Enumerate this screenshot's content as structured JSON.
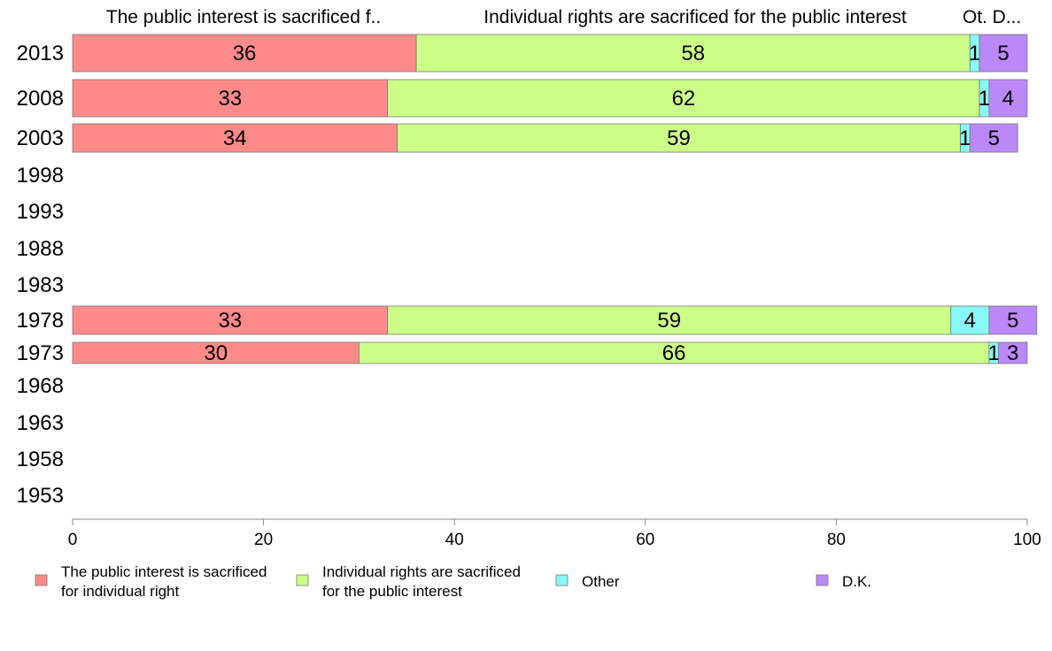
{
  "chart_data": {
    "type": "bar",
    "orientation": "horizontal",
    "stacked": true,
    "percent": true,
    "categories": [
      "2013",
      "2008",
      "2003",
      "1998",
      "1993",
      "1988",
      "1983",
      "1978",
      "1973",
      "1968",
      "1963",
      "1958",
      "1953"
    ],
    "series": [
      {
        "name": "The public interest is sacrificed for individual right",
        "values": [
          36,
          33,
          34,
          null,
          null,
          null,
          null,
          33,
          30,
          null,
          null,
          null,
          null
        ],
        "color": "#ff8a8a"
      },
      {
        "name": "Individual rights are sacrificed for the public interest",
        "values": [
          58,
          62,
          59,
          null,
          null,
          null,
          null,
          59,
          66,
          null,
          null,
          null,
          null
        ],
        "color": "#ccff88"
      },
      {
        "name": "Other",
        "values": [
          1,
          1,
          1,
          null,
          null,
          null,
          null,
          4,
          1,
          null,
          null,
          null,
          null
        ],
        "color": "#88f8f8"
      },
      {
        "name": "D.K.",
        "values": [
          5,
          4,
          5,
          null,
          null,
          null,
          null,
          5,
          3,
          null,
          null,
          null,
          null
        ],
        "color": "#bb88f8"
      }
    ],
    "column_headers": [
      "The public interest is sacrificed f..",
      "Individual rights are sacrificed for the public interest",
      "Ot.",
      "D..."
    ],
    "legend": {
      "position": "bottom",
      "entries": [
        {
          "line1": "The public interest is sacrificed",
          "line2": "for individual right"
        },
        {
          "line1": "Individual rights are sacrificed",
          "line2": "for the public interest"
        },
        {
          "line1": "Other",
          "line2": ""
        },
        {
          "line1": "D.K.",
          "line2": ""
        }
      ]
    },
    "xlim": [
      0,
      100
    ],
    "xticks": [
      0,
      20,
      40,
      60,
      80,
      100
    ],
    "grid": false
  }
}
